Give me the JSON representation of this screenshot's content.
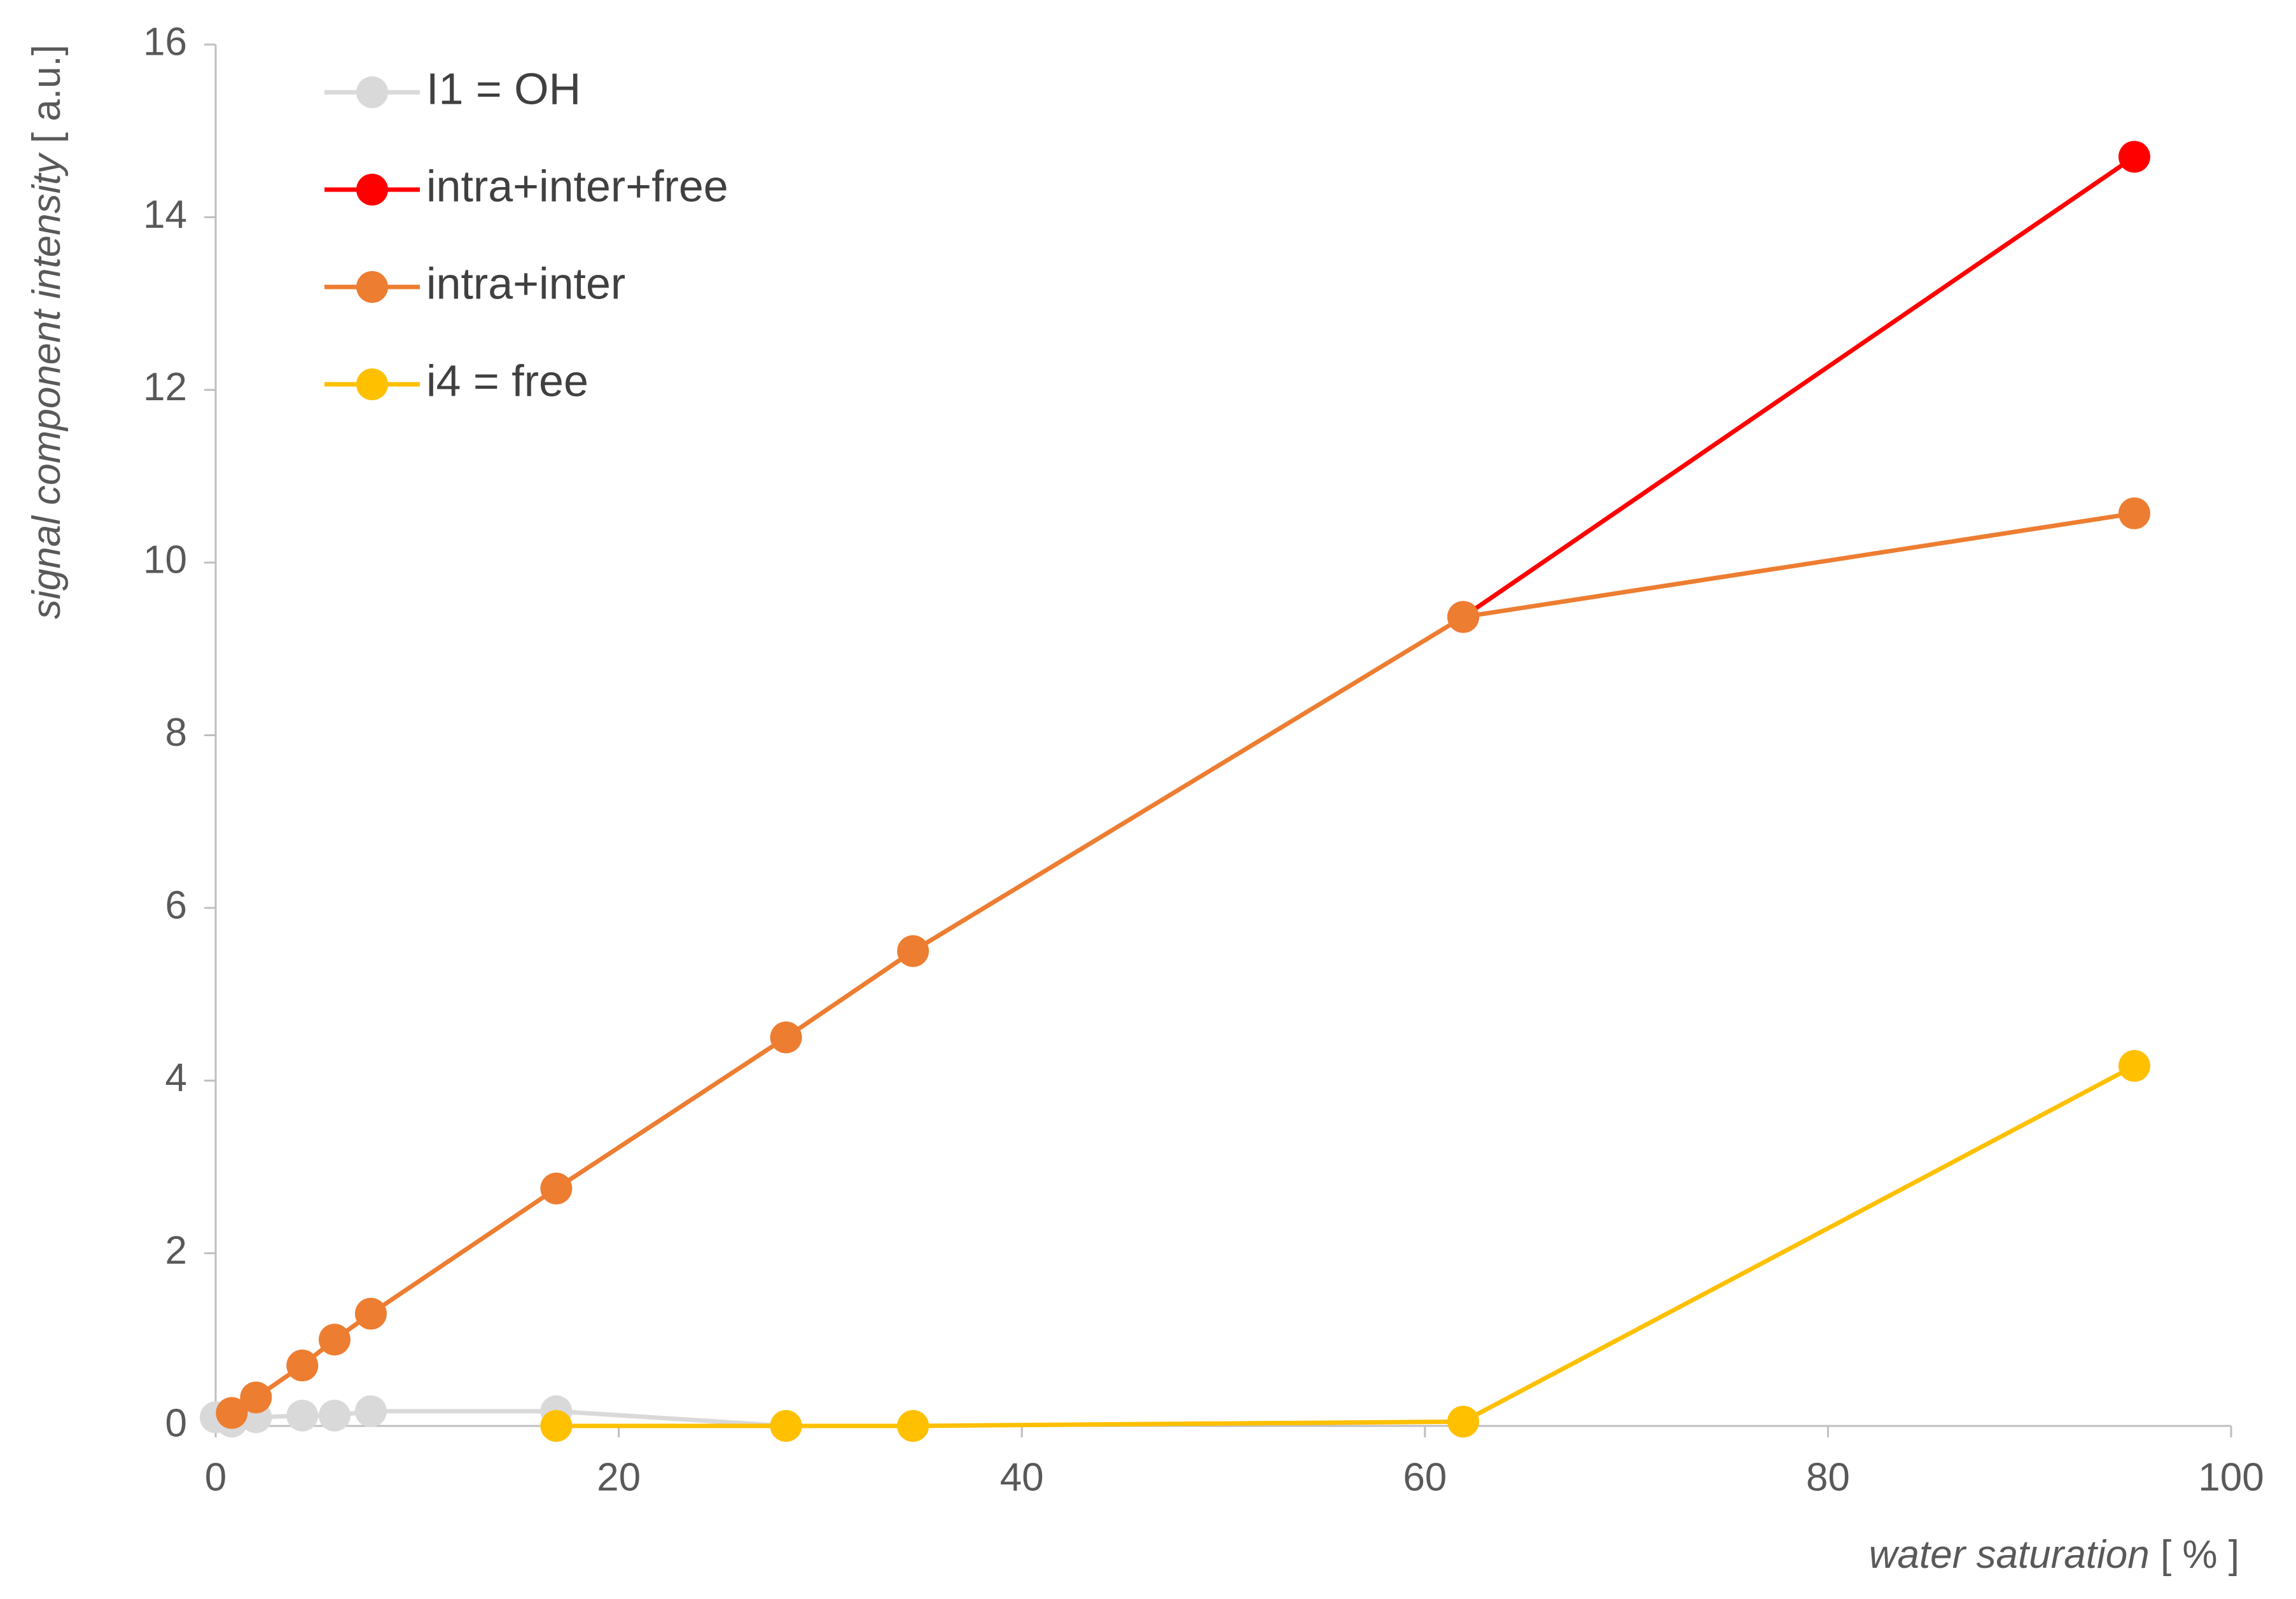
{
  "chart_data": {
    "type": "line",
    "x_label": "water saturation",
    "x_unit": "[ % ]",
    "y_label": "signal component intensity",
    "y_unit": "[ a.u.]",
    "xlim": [
      0,
      100
    ],
    "xticks": [
      0,
      20,
      40,
      60,
      80,
      100
    ],
    "ylim": [
      0,
      16
    ],
    "yticks": [
      0,
      2,
      4,
      6,
      8,
      10,
      12,
      14,
      16
    ],
    "legend": "upper left",
    "series": [
      {
        "name": "I1 = OH",
        "color": "#d9d9d9",
        "x": [
          0,
          0.8,
          2,
          4.3,
          5.9,
          7.7,
          16.9,
          28.3,
          34.6
        ],
        "values": [
          0.1,
          0.05,
          0.1,
          0.12,
          0.12,
          0.17,
          0.17,
          0,
          0
        ]
      },
      {
        "name": "intra+inter+free",
        "color": "#ff0000",
        "x": [
          61.9,
          95.2
        ],
        "values": [
          9.37,
          14.7
        ]
      },
      {
        "name": "intra+inter",
        "color": "#ed7d31",
        "x": [
          0.8,
          2,
          4.3,
          5.9,
          7.7,
          16.9,
          28.3,
          34.6,
          61.9,
          95.2
        ],
        "values": [
          0.15,
          0.33,
          0.7,
          1.0,
          1.3,
          2.75,
          4.5,
          5.5,
          9.37,
          10.57
        ]
      },
      {
        "name": "i4 = free",
        "color": "#ffc000",
        "x": [
          16.9,
          28.3,
          34.6,
          61.9,
          95.2
        ],
        "values": [
          0,
          0,
          0,
          0.05,
          4.17
        ]
      }
    ]
  }
}
